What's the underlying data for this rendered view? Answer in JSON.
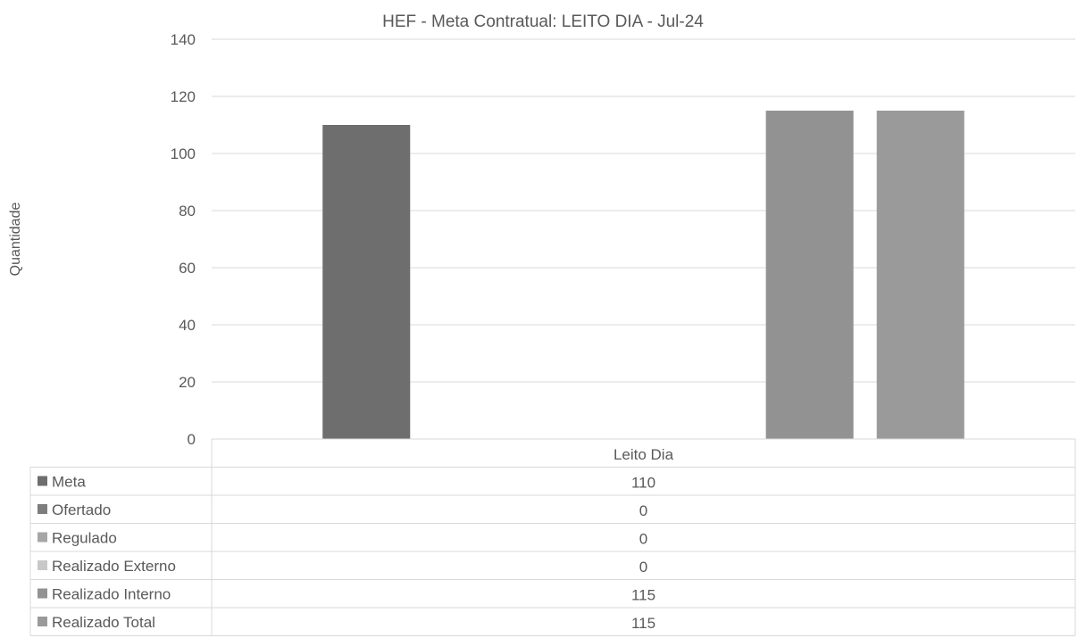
{
  "chart_data": {
    "type": "bar",
    "title": "HEF - Meta Contratual: LEITO DIA - Jul-24",
    "xlabel": "",
    "ylabel": "Quantidade",
    "categories": [
      "Leito Dia"
    ],
    "ylim": [
      0,
      140
    ],
    "yticks": [
      0,
      20,
      40,
      60,
      80,
      100,
      120,
      140
    ],
    "grid": true,
    "legend": "data-table-below",
    "series": [
      {
        "name": "Meta",
        "values": [
          110
        ],
        "color": "#6e6e6e"
      },
      {
        "name": "Ofertado",
        "values": [
          0
        ],
        "color": "#7d7d7d"
      },
      {
        "name": "Regulado",
        "values": [
          0
        ],
        "color": "#a6a6a6"
      },
      {
        "name": "Realizado Externo",
        "values": [
          0
        ],
        "color": "#c8c8c8"
      },
      {
        "name": "Realizado Interno",
        "values": [
          115
        ],
        "color": "#929292"
      },
      {
        "name": "Realizado Total",
        "values": [
          115
        ],
        "color": "#9a9a9a"
      }
    ]
  }
}
